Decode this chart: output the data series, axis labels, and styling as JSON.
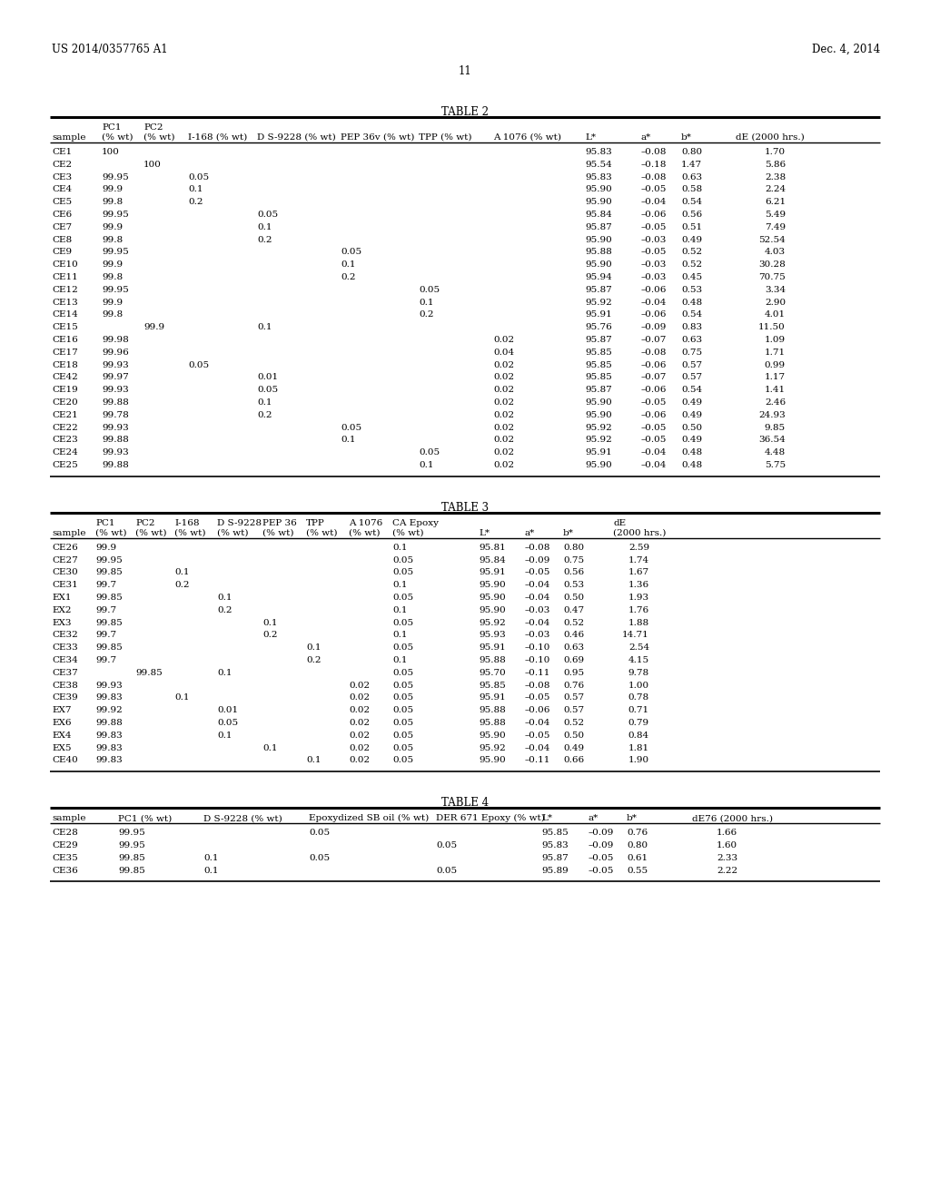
{
  "patent_left": "US 2014/0357765 A1",
  "patent_right": "Dec. 4, 2014",
  "page_number": "11",
  "table2_title": "TABLE 2",
  "table3_title": "TABLE 3",
  "table4_title": "TABLE 4",
  "table2_rows": [
    [
      "CE1",
      "100",
      "",
      "",
      "",
      "",
      "",
      "",
      "95.83",
      "–0.08",
      "0.80",
      "1.70"
    ],
    [
      "CE2",
      "",
      "100",
      "",
      "",
      "",
      "",
      "",
      "95.54",
      "–0.18",
      "1.47",
      "5.86"
    ],
    [
      "CE3",
      "99.95",
      "",
      "0.05",
      "",
      "",
      "",
      "",
      "95.83",
      "–0.08",
      "0.63",
      "2.38"
    ],
    [
      "CE4",
      "99.9",
      "",
      "0.1",
      "",
      "",
      "",
      "",
      "95.90",
      "–0.05",
      "0.58",
      "2.24"
    ],
    [
      "CE5",
      "99.8",
      "",
      "0.2",
      "",
      "",
      "",
      "",
      "95.90",
      "–0.04",
      "0.54",
      "6.21"
    ],
    [
      "CE6",
      "99.95",
      "",
      "",
      "0.05",
      "",
      "",
      "",
      "95.84",
      "–0.06",
      "0.56",
      "5.49"
    ],
    [
      "CE7",
      "99.9",
      "",
      "",
      "0.1",
      "",
      "",
      "",
      "95.87",
      "–0.05",
      "0.51",
      "7.49"
    ],
    [
      "CE8",
      "99.8",
      "",
      "",
      "0.2",
      "",
      "",
      "",
      "95.90",
      "–0.03",
      "0.49",
      "52.54"
    ],
    [
      "CE9",
      "99.95",
      "",
      "",
      "",
      "0.05",
      "",
      "",
      "95.88",
      "–0.05",
      "0.52",
      "4.03"
    ],
    [
      "CE10",
      "99.9",
      "",
      "",
      "",
      "0.1",
      "",
      "",
      "95.90",
      "–0.03",
      "0.52",
      "30.28"
    ],
    [
      "CE11",
      "99.8",
      "",
      "",
      "",
      "0.2",
      "",
      "",
      "95.94",
      "–0.03",
      "0.45",
      "70.75"
    ],
    [
      "CE12",
      "99.95",
      "",
      "",
      "",
      "",
      "0.05",
      "",
      "95.87",
      "–0.06",
      "0.53",
      "3.34"
    ],
    [
      "CE13",
      "99.9",
      "",
      "",
      "",
      "",
      "0.1",
      "",
      "95.92",
      "–0.04",
      "0.48",
      "2.90"
    ],
    [
      "CE14",
      "99.8",
      "",
      "",
      "",
      "",
      "0.2",
      "",
      "95.91",
      "–0.06",
      "0.54",
      "4.01"
    ],
    [
      "CE15",
      "",
      "99.9",
      "",
      "0.1",
      "",
      "",
      "",
      "95.76",
      "–0.09",
      "0.83",
      "11.50"
    ],
    [
      "CE16",
      "99.98",
      "",
      "",
      "",
      "",
      "",
      "0.02",
      "95.87",
      "–0.07",
      "0.63",
      "1.09"
    ],
    [
      "CE17",
      "99.96",
      "",
      "",
      "",
      "",
      "",
      "0.04",
      "95.85",
      "–0.08",
      "0.75",
      "1.71"
    ],
    [
      "CE18",
      "99.93",
      "",
      "0.05",
      "",
      "",
      "",
      "0.02",
      "95.85",
      "–0.06",
      "0.57",
      "0.99"
    ],
    [
      "CE42",
      "99.97",
      "",
      "",
      "0.01",
      "",
      "",
      "0.02",
      "95.85",
      "–0.07",
      "0.57",
      "1.17"
    ],
    [
      "CE19",
      "99.93",
      "",
      "",
      "0.05",
      "",
      "",
      "0.02",
      "95.87",
      "–0.06",
      "0.54",
      "1.41"
    ],
    [
      "CE20",
      "99.88",
      "",
      "",
      "0.1",
      "",
      "",
      "0.02",
      "95.90",
      "–0.05",
      "0.49",
      "2.46"
    ],
    [
      "CE21",
      "99.78",
      "",
      "",
      "0.2",
      "",
      "",
      "0.02",
      "95.90",
      "–0.06",
      "0.49",
      "24.93"
    ],
    [
      "CE22",
      "99.93",
      "",
      "",
      "",
      "0.05",
      "",
      "0.02",
      "95.92",
      "–0.05",
      "0.50",
      "9.85"
    ],
    [
      "CE23",
      "99.88",
      "",
      "",
      "",
      "0.1",
      "",
      "0.02",
      "95.92",
      "–0.05",
      "0.49",
      "36.54"
    ],
    [
      "CE24",
      "99.93",
      "",
      "",
      "",
      "",
      "0.05",
      "0.02",
      "95.91",
      "–0.04",
      "0.48",
      "4.48"
    ],
    [
      "CE25",
      "99.88",
      "",
      "",
      "",
      "",
      "0.1",
      "0.02",
      "95.90",
      "–0.04",
      "0.48",
      "5.75"
    ]
  ],
  "table3_rows": [
    [
      "CE26",
      "99.9",
      "",
      "",
      "",
      "",
      "",
      "",
      "0.1",
      "95.81",
      "–0.08",
      "0.80",
      "2.59"
    ],
    [
      "CE27",
      "99.95",
      "",
      "",
      "",
      "",
      "",
      "",
      "0.05",
      "95.84",
      "–0.09",
      "0.75",
      "1.74"
    ],
    [
      "CE30",
      "99.85",
      "",
      "0.1",
      "",
      "",
      "",
      "",
      "0.05",
      "95.91",
      "–0.05",
      "0.56",
      "1.67"
    ],
    [
      "CE31",
      "99.7",
      "",
      "0.2",
      "",
      "",
      "",
      "",
      "0.1",
      "95.90",
      "–0.04",
      "0.53",
      "1.36"
    ],
    [
      "EX1",
      "99.85",
      "",
      "",
      "0.1",
      "",
      "",
      "",
      "0.05",
      "95.90",
      "–0.04",
      "0.50",
      "1.93"
    ],
    [
      "EX2",
      "99.7",
      "",
      "",
      "0.2",
      "",
      "",
      "",
      "0.1",
      "95.90",
      "–0.03",
      "0.47",
      "1.76"
    ],
    [
      "EX3",
      "99.85",
      "",
      "",
      "",
      "0.1",
      "",
      "",
      "0.05",
      "95.92",
      "–0.04",
      "0.52",
      "1.88"
    ],
    [
      "CE32",
      "99.7",
      "",
      "",
      "",
      "0.2",
      "",
      "",
      "0.1",
      "95.93",
      "–0.03",
      "0.46",
      "14.71"
    ],
    [
      "CE33",
      "99.85",
      "",
      "",
      "",
      "",
      "0.1",
      "",
      "0.05",
      "95.91",
      "–0.10",
      "0.63",
      "2.54"
    ],
    [
      "CE34",
      "99.7",
      "",
      "",
      "",
      "",
      "0.2",
      "",
      "0.1",
      "95.88",
      "–0.10",
      "0.69",
      "4.15"
    ],
    [
      "CE37",
      "",
      "99.85",
      "",
      "0.1",
      "",
      "",
      "",
      "0.05",
      "95.70",
      "–0.11",
      "0.95",
      "9.78"
    ],
    [
      "CE38",
      "99.93",
      "",
      "",
      "",
      "",
      "",
      "0.02",
      "0.05",
      "95.85",
      "–0.08",
      "0.76",
      "1.00"
    ],
    [
      "CE39",
      "99.83",
      "",
      "0.1",
      "",
      "",
      "",
      "0.02",
      "0.05",
      "95.91",
      "–0.05",
      "0.57",
      "0.78"
    ],
    [
      "EX7",
      "99.92",
      "",
      "",
      "0.01",
      "",
      "",
      "0.02",
      "0.05",
      "95.88",
      "–0.06",
      "0.57",
      "0.71"
    ],
    [
      "EX6",
      "99.88",
      "",
      "",
      "0.05",
      "",
      "",
      "0.02",
      "0.05",
      "95.88",
      "–0.04",
      "0.52",
      "0.79"
    ],
    [
      "EX4",
      "99.83",
      "",
      "",
      "0.1",
      "",
      "",
      "0.02",
      "0.05",
      "95.90",
      "–0.05",
      "0.50",
      "0.84"
    ],
    [
      "EX5",
      "99.83",
      "",
      "",
      "",
      "0.1",
      "",
      "0.02",
      "0.05",
      "95.92",
      "–0.04",
      "0.49",
      "1.81"
    ],
    [
      "CE40",
      "99.83",
      "",
      "",
      "",
      "",
      "0.1",
      "0.02",
      "0.05",
      "95.90",
      "–0.11",
      "0.66",
      "1.90"
    ]
  ],
  "table4_rows": [
    [
      "CE28",
      "99.95",
      "",
      "0.05",
      "",
      "95.85",
      "–0.09",
      "0.76",
      "1.66"
    ],
    [
      "CE29",
      "99.95",
      "",
      "",
      "0.05",
      "95.83",
      "–0.09",
      "0.80",
      "1.60"
    ],
    [
      "CE35",
      "99.85",
      "0.1",
      "0.05",
      "",
      "95.87",
      "–0.05",
      "0.61",
      "2.33"
    ],
    [
      "CE36",
      "99.85",
      "0.1",
      "",
      "0.05",
      "95.89",
      "–0.05",
      "0.55",
      "2.22"
    ]
  ]
}
